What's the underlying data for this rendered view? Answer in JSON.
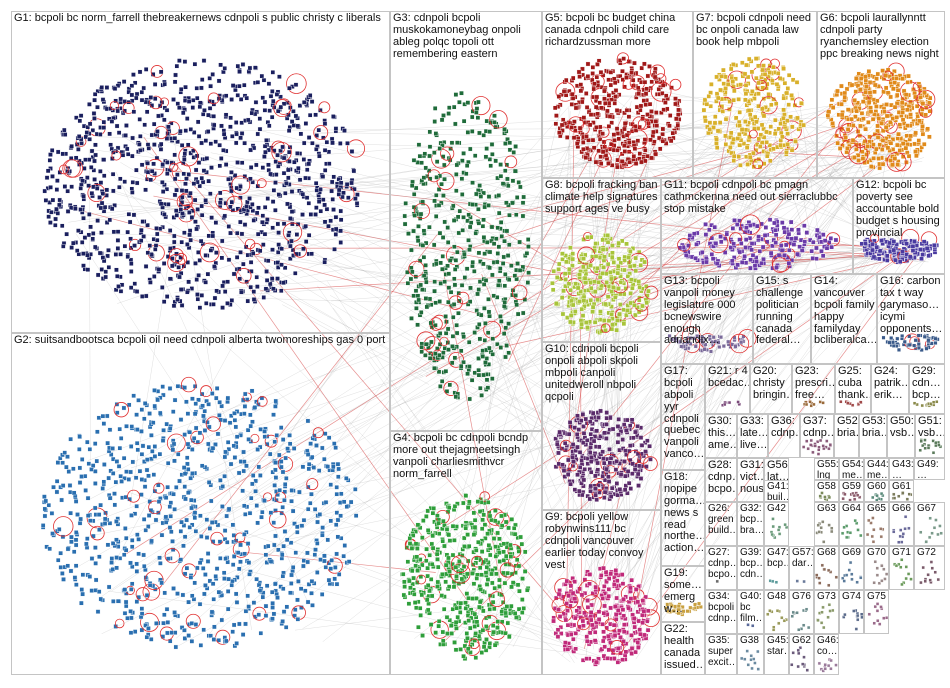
{
  "colors": {
    "edge": "#9a9a9a",
    "self_loop": "#e03030",
    "inter_edge": "#d23030",
    "box_border": "#c4c4c4",
    "label": "#111111"
  },
  "groups": [
    {
      "id": "G1",
      "label": "G1: bcpoli bc norm_farrell thebreakernews cdnpoli s public christy c liberals",
      "color": "#1a1f5e"
    },
    {
      "id": "G2",
      "label": "G2: suitsandbootsca bcpoli oil need cdnpoli alberta twomoreships gas 0 port",
      "color": "#2a6fb0"
    },
    {
      "id": "G3",
      "label": "G3: cdnpoli bcpoli muskokamoneybag onpoli ableg polqc topoli ott remembering eastern",
      "color": "#1f6b3a"
    },
    {
      "id": "G4",
      "label": "G4: bcpoli bc cdnpoli bcndp more out thejagmeetsingh vanpoli charliesmithvcr norm_farrell",
      "color": "#2e9e3a"
    },
    {
      "id": "G5",
      "label": "G5: bcpoli bc budget china canada cdnpoli child care richardzussman more",
      "color": "#a01818"
    },
    {
      "id": "G6",
      "label": "G6: bcpoli laurallynntt cdnpoli party ryanchemsley election ppc breaking news night",
      "color": "#e08a1a"
    },
    {
      "id": "G7",
      "label": "G7: bcpoli cdnpoli need bc onpoli canada law book help mbpoli",
      "color": "#d8b02a"
    },
    {
      "id": "G8",
      "label": "G8: bcpoli fracking ban climate help signatures support ages ve busy",
      "color": "#a8c43a"
    },
    {
      "id": "G9",
      "label": "G9: bcpoli yellow robynwins111 bc cdnpoli vancouver earlier today convoy vest",
      "color": "#c02a7a"
    },
    {
      "id": "G10",
      "label": "G10: cdnpoli bcpoli onpoli abpoli skpoli mbpoli canpoli unitedweroll nbpoli qcpoli",
      "color": "#5a2a6a"
    },
    {
      "id": "G11",
      "label": "G11: bcpoli cdnpoli bc pmagn cathmckenna need out sierraclubbc stop mistake",
      "color": "#6a3aa8"
    },
    {
      "id": "G12",
      "label": "G12: bcpoli bc poverty see accountable bold budget s housing provincial",
      "color": "#4a3aa0"
    },
    {
      "id": "G13",
      "label": "G13: bcpoli vanpoli money legislature 000 bcnewswire enough adriandix…",
      "color": "#7a6a9a"
    },
    {
      "id": "G14",
      "label": "G14: vancouver bcpoli family happy familyday bcliberalca…",
      "color": "#6a8a9a"
    },
    {
      "id": "G15",
      "label": "G15: s challenge politician running canada federal…",
      "color": "#5a7a6a"
    },
    {
      "id": "G16",
      "label": "G16: carbon tax t way garymaso… icymi opponents…",
      "color": "#3a5a8a"
    },
    {
      "id": "G17",
      "label": "G17: bcpoli abpoli yyr cdnpoli quebec vanpoli vanco…",
      "color": "#8a5a3a"
    },
    {
      "id": "G18",
      "label": "G18: nopipe gorma… news s read northe… action…",
      "color": "#4a7a4a"
    },
    {
      "id": "G19",
      "label": "G19: some… emerg w…",
      "color": "#c8a040"
    },
    {
      "id": "G20",
      "label": "G20: christy bringin…",
      "color": "#5a5a9a"
    },
    {
      "id": "G21",
      "label": "G21: r 4 bcedac…",
      "color": "#7a4a7a"
    },
    {
      "id": "G22",
      "label": "G22: health canada issued…",
      "color": "#7aa0c0"
    },
    {
      "id": "G23",
      "label": "G23: prescri… free…",
      "color": "#9a6a3a"
    },
    {
      "id": "G24",
      "label": "G24: patrik… erik…",
      "color": "#3a8a8a"
    },
    {
      "id": "G25",
      "label": "G25: cuba thank…",
      "color": "#a04a4a"
    },
    {
      "id": "G26",
      "label": "G26: green build…",
      "color": "#4a9a4a"
    },
    {
      "id": "G27",
      "label": "G27: cdnp… bcpo…",
      "color": "#6a6a6a"
    },
    {
      "id": "G28",
      "label": "G28: cdnp… bcpo…",
      "color": "#5a7aa0"
    },
    {
      "id": "G29",
      "label": "G29: cdn… bcp…",
      "color": "#8a8a4a"
    },
    {
      "id": "G30",
      "label": "G30: this… ame…",
      "color": "#6a4a8a"
    },
    {
      "id": "G31",
      "label": "G31: vict… nous",
      "color": "#4a6a8a"
    },
    {
      "id": "G32",
      "label": "G32: bcp… bra…",
      "color": "#8a6a4a"
    },
    {
      "id": "G33",
      "label": "G33: late… live…",
      "color": "#4a8a6a"
    },
    {
      "id": "G34",
      "label": "G34: bcpoli cdnp…",
      "color": "#7a7a9a"
    },
    {
      "id": "G35",
      "label": "G35: super excit…",
      "color": "#a07a3a"
    },
    {
      "id": "G36",
      "label": "G36: cdnp…",
      "color": "#5a8a5a"
    },
    {
      "id": "G37",
      "label": "G37: cdnp…",
      "color": "#8a5a7a"
    },
    {
      "id": "G38",
      "label": "G38",
      "color": "#6a8aa0"
    },
    {
      "id": "G39",
      "label": "G39: bcp… cdn…",
      "color": "#7a6a5a"
    },
    {
      "id": "G40",
      "label": "G40: bc film…",
      "color": "#5a6a9a"
    },
    {
      "id": "G41",
      "label": "G41: buil… int…",
      "color": "#8a7a5a"
    },
    {
      "id": "G42",
      "label": "G42",
      "color": "#6a9a7a"
    },
    {
      "id": "G43",
      "label": "G43: …",
      "color": "#9a5a5a"
    },
    {
      "id": "G44",
      "label": "G44: me…",
      "color": "#5a5a7a"
    },
    {
      "id": "G45",
      "label": "G45: star…",
      "color": "#7a9a5a"
    },
    {
      "id": "G46",
      "label": "G46: co…",
      "color": "#9a7a9a"
    },
    {
      "id": "G47",
      "label": "G47: bcp…",
      "color": "#5a9a9a"
    },
    {
      "id": "G48",
      "label": "G48",
      "color": "#9a9a5a"
    },
    {
      "id": "G49",
      "label": "G49: …",
      "color": "#6a5a9a"
    },
    {
      "id": "G50",
      "label": "G50: vsb…",
      "color": "#9a6a6a"
    },
    {
      "id": "G51",
      "label": "G51: vsb…",
      "color": "#5a7a5a"
    },
    {
      "id": "G52",
      "label": "G52: bria…",
      "color": "#7a5a9a"
    },
    {
      "id": "G53",
      "label": "G53: bria…",
      "color": "#6a8a6a"
    },
    {
      "id": "G54",
      "label": "G54: me…",
      "color": "#8a6a8a"
    },
    {
      "id": "G55",
      "label": "G55: lng",
      "color": "#5a6a7a"
    },
    {
      "id": "G56",
      "label": "G56: lat…",
      "color": "#9a8a6a"
    },
    {
      "id": "G57",
      "label": "G57: dar…",
      "color": "#6a7a9a"
    },
    {
      "id": "G58",
      "label": "G58",
      "color": "#7a8a5a"
    },
    {
      "id": "G59",
      "label": "G59",
      "color": "#8a5a6a"
    },
    {
      "id": "G60",
      "label": "G60",
      "color": "#5a8a7a"
    },
    {
      "id": "G61",
      "label": "G61",
      "color": "#7a7a5a"
    },
    {
      "id": "G62",
      "label": "G62",
      "color": "#6a5a7a"
    },
    {
      "id": "G63",
      "label": "G63",
      "color": "#8a8a7a"
    },
    {
      "id": "G64",
      "label": "G64",
      "color": "#5a9a6a"
    },
    {
      "id": "G65",
      "label": "G65",
      "color": "#9a7a6a"
    },
    {
      "id": "G66",
      "label": "G66",
      "color": "#6a6a9a"
    },
    {
      "id": "G67",
      "label": "G67",
      "color": "#7a9a8a"
    },
    {
      "id": "G68",
      "label": "G68",
      "color": "#8a6a5a"
    },
    {
      "id": "G69",
      "label": "G69",
      "color": "#5a7a9a"
    },
    {
      "id": "G70",
      "label": "G70",
      "color": "#9a8a8a"
    },
    {
      "id": "G71",
      "label": "G71",
      "color": "#6a9a5a"
    },
    {
      "id": "G72",
      "label": "G72",
      "color": "#7a5a6a"
    },
    {
      "id": "G73",
      "label": "G73",
      "color": "#8a9a6a"
    },
    {
      "id": "G74",
      "label": "G74",
      "color": "#5a6a8a"
    },
    {
      "id": "G75",
      "label": "G75",
      "color": "#9a6a8a"
    },
    {
      "id": "G76",
      "label": "G76",
      "color": "#6a8a8a"
    }
  ]
}
